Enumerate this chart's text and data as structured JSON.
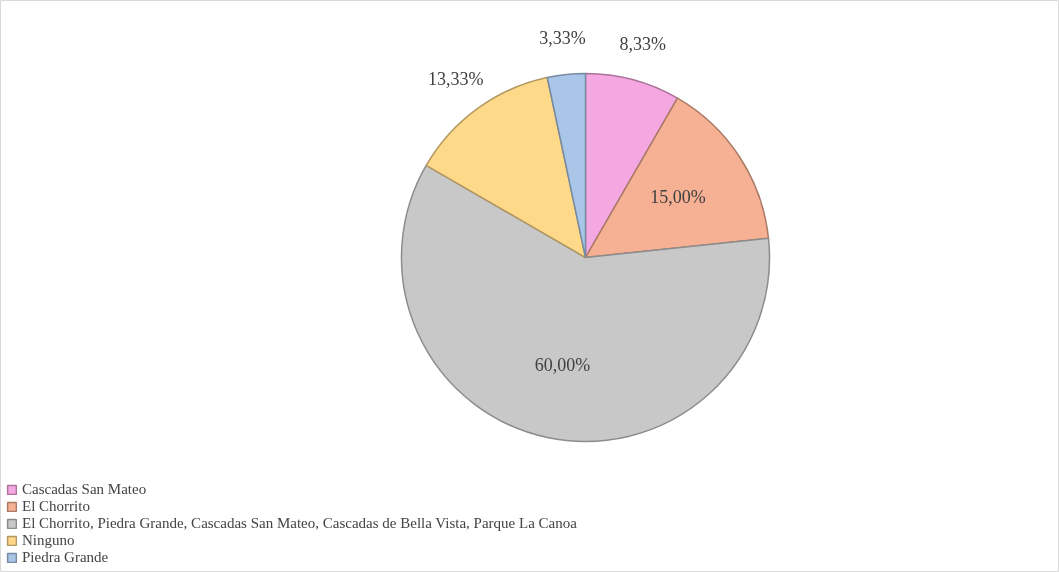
{
  "chart_data": {
    "type": "pie",
    "categories": [
      "Cascadas San Mateo",
      "El Chorrito",
      "El Chorrito, Piedra Grande, Cascadas San Mateo, Cascadas de Bella Vista, Parque La Canoa",
      "Ninguno",
      "Piedra Grande"
    ],
    "values": [
      8.33,
      15.0,
      60.0,
      13.33,
      3.33
    ],
    "value_labels": [
      "8,33%",
      "15,00%",
      "60,00%",
      "13,33%",
      "3,33%"
    ],
    "colors": [
      "#f4a7e0",
      "#f6b093",
      "#c8c8c8",
      "#ffd98a",
      "#a9c6e8"
    ],
    "legend": "bottom left"
  }
}
